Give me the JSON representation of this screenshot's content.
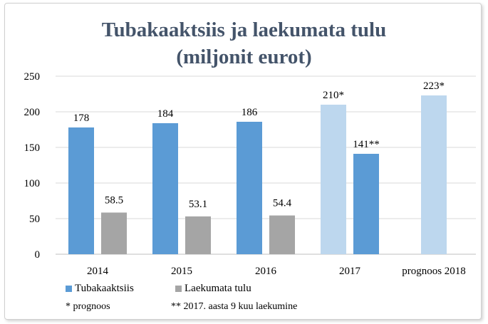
{
  "chart_data": {
    "type": "bar",
    "title_line1": "Tubakaaktsiis ja laekumata tulu",
    "title_line2": "(miljonit eurot)",
    "categories": [
      "2014",
      "2015",
      "2016",
      "2017",
      "prognoos 2018"
    ],
    "ylim": [
      0,
      250
    ],
    "yticks": [
      "0",
      "50",
      "100",
      "150",
      "200",
      "250"
    ],
    "grid": true,
    "series": [
      {
        "name": "Tubakaaktsiis",
        "values": [
          178,
          184,
          186,
          210,
          223
        ],
        "labels": [
          "178",
          "184",
          "186",
          "210*",
          "223*"
        ],
        "colors": [
          "#5b9bd5",
          "#5b9bd5",
          "#5b9bd5",
          "#bdd7ee",
          "#bdd7ee"
        ]
      },
      {
        "name": "Laekumata tulu",
        "values": [
          58.5,
          53.1,
          54.4,
          null,
          null
        ],
        "labels": [
          "58.5",
          "53.1",
          "54.4",
          "",
          ""
        ],
        "colors": [
          "#a5a5a5",
          "#a5a5a5",
          "#a5a5a5",
          null,
          null
        ]
      }
    ],
    "extra_bar": {
      "category": "2017",
      "value": 141,
      "label": "141**",
      "color": "#5b9bd5"
    },
    "legend": [
      {
        "name": "Tubakaaktsiis",
        "color": "#5b9bd5"
      },
      {
        "name": "Laekumata tulu",
        "color": "#a5a5a5"
      }
    ],
    "footnotes": [
      "* prognoos",
      "** 2017. aasta 9 kuu laekumine"
    ]
  }
}
